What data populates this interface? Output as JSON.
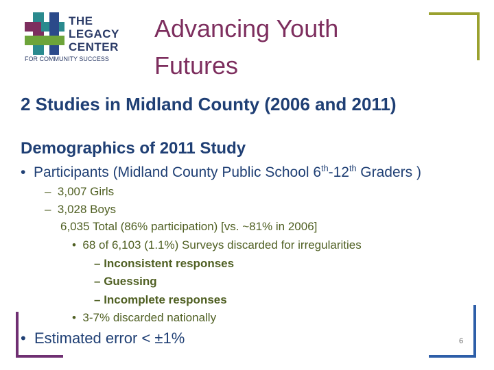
{
  "logo": {
    "lines": [
      "THE",
      "LEGACY",
      "CENTER",
      "FOR COMMUNITY SUCCESS"
    ]
  },
  "title": {
    "lines": [
      "Advancing Youth",
      "Futures"
    ]
  },
  "heading": "2 Studies in Midland County (2006 and 2011)",
  "section": {
    "title": "Demographics of 2011 Study",
    "participants": {
      "parts": [
        "Participants (Midland County Public School 6",
        "th",
        "-12",
        "th",
        " Graders )"
      ]
    },
    "girls": "3,007 Girls",
    "boys": "3,028 Boys",
    "total": "6,035 Total (86% participation) [vs. ~81% in 2006]",
    "discarded": "68 of 6,103 (1.1%) Surveys discarded for irregularities",
    "reasons": [
      "Inconsistent responses",
      "Guessing",
      "Incomplete responses"
    ],
    "national": "3-7% discarded nationally",
    "error": "Estimated error < ±1%"
  },
  "page_number": "6"
}
